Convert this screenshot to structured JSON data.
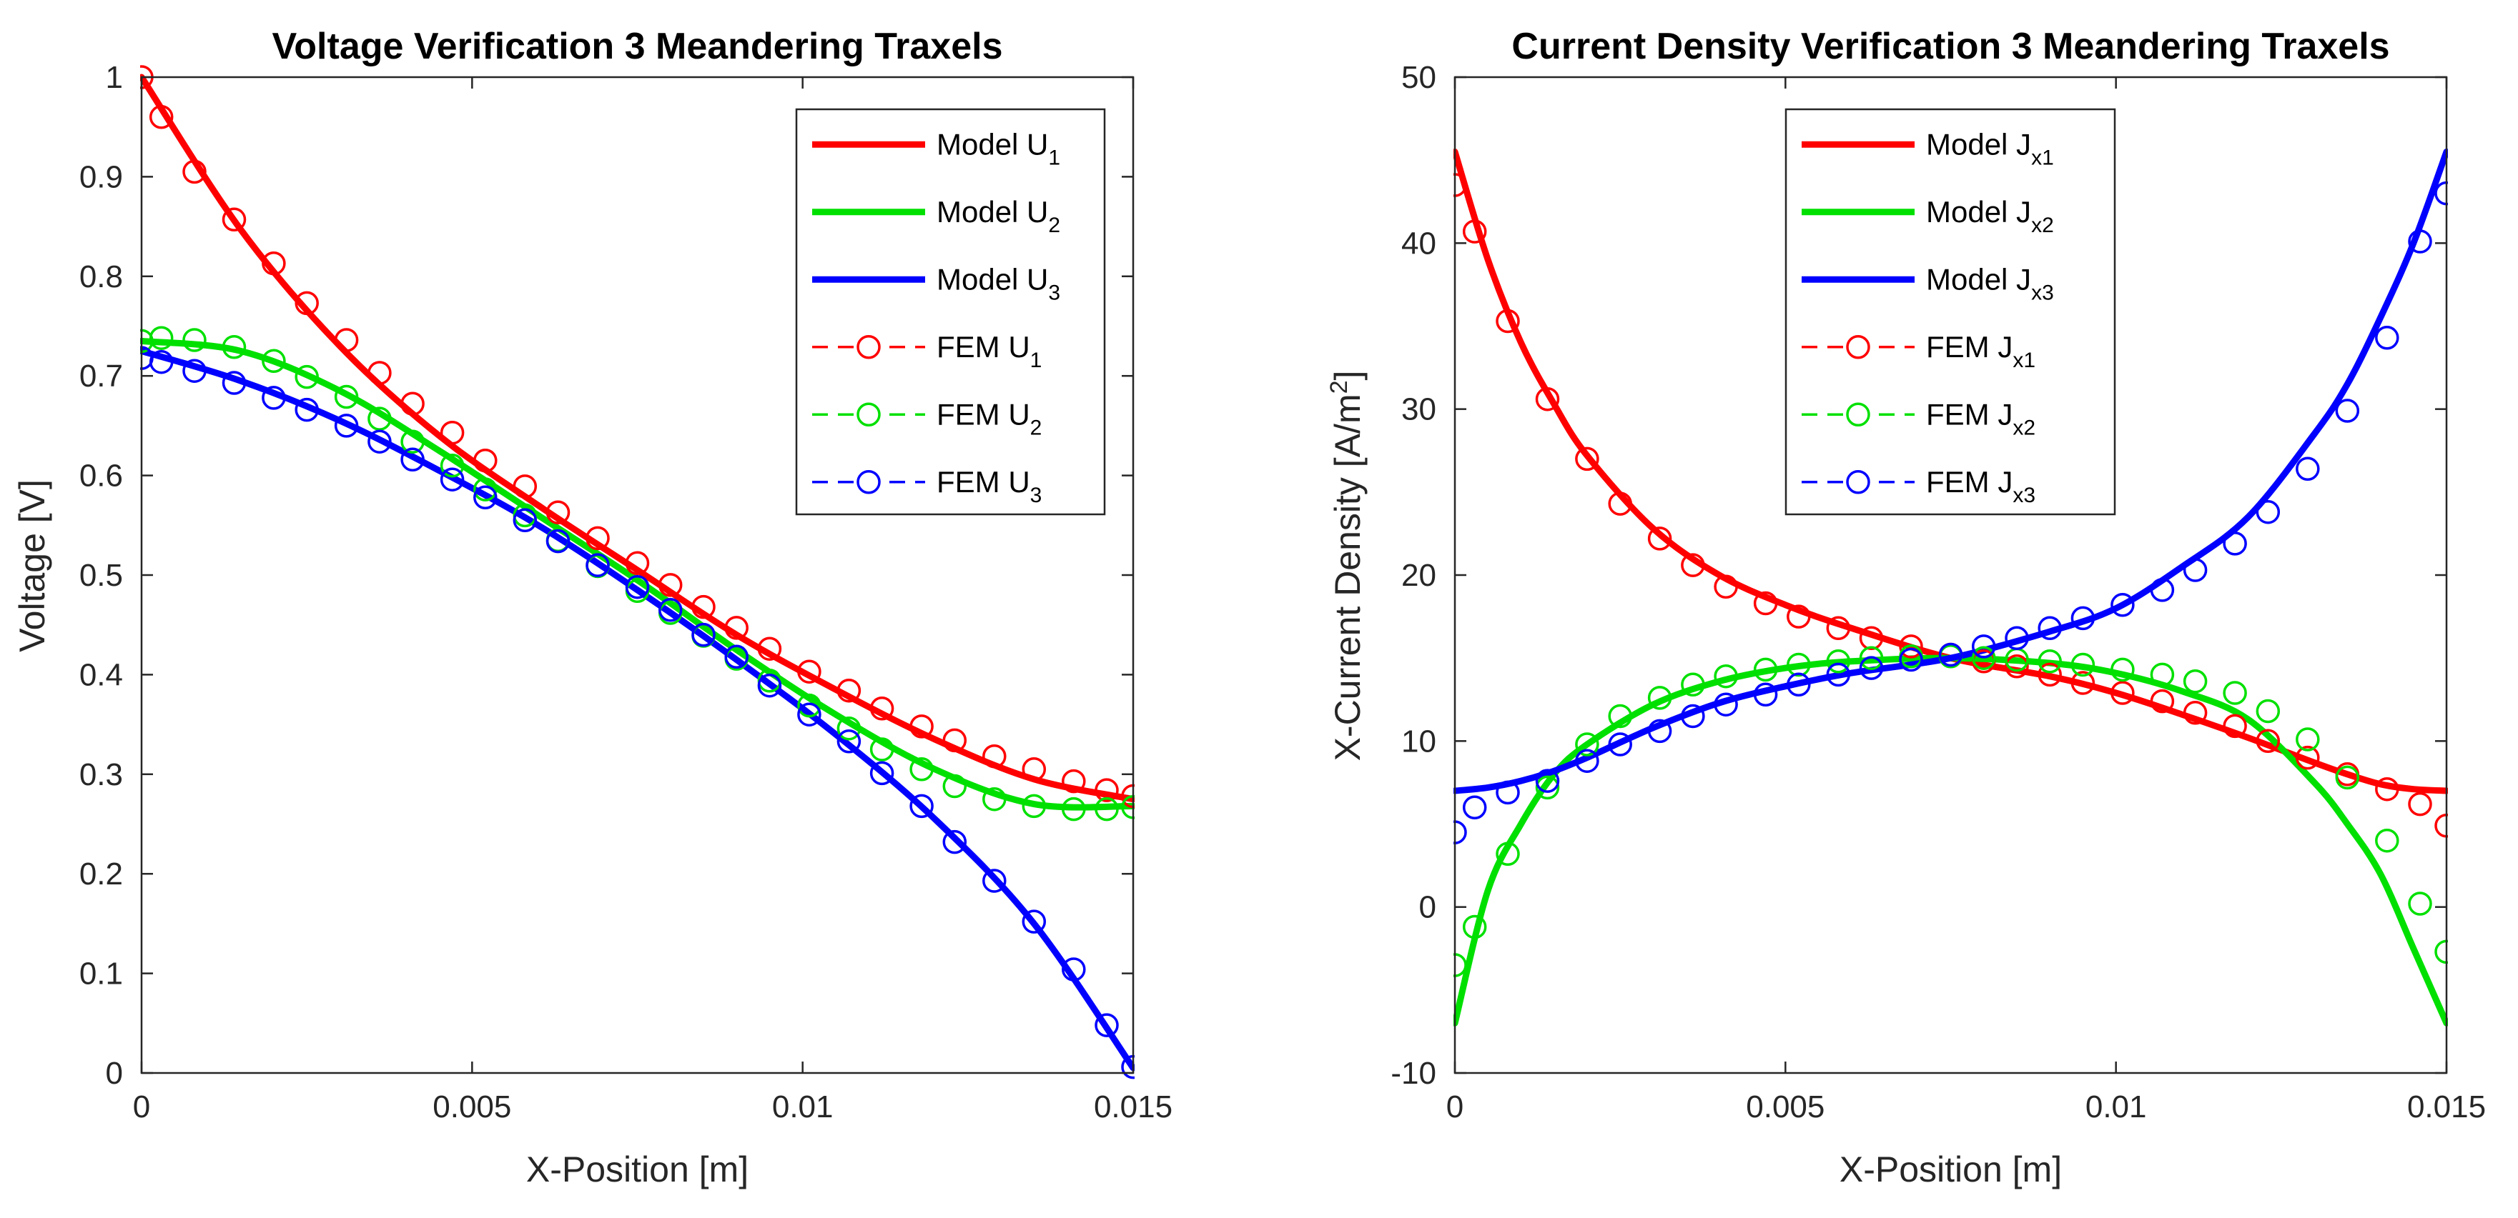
{
  "chart_data": [
    {
      "type": "line",
      "title": "Voltage Verification 3 Meandering Traxels",
      "xlabel": "X-Position [m]",
      "ylabel": "Voltage [V]",
      "xlim": [
        0,
        0.015
      ],
      "ylim": [
        0,
        1
      ],
      "xticks": [
        0,
        0.005,
        0.01,
        0.015
      ],
      "xtick_labels": [
        "0",
        "0.005",
        "0.01",
        "0.015"
      ],
      "yticks": [
        0,
        0.1,
        0.2,
        0.3,
        0.4,
        0.5,
        0.6,
        0.7,
        0.8,
        0.9,
        1
      ],
      "ytick_labels": [
        "0",
        "0.1",
        "0.2",
        "0.3",
        "0.4",
        "0.5",
        "0.6",
        "0.7",
        "0.8",
        "0.9",
        "1"
      ],
      "legend_position": "top-right",
      "model_x": [
        0,
        0.0015,
        0.003,
        0.0045,
        0.006,
        0.0075,
        0.009,
        0.0105,
        0.012,
        0.0135,
        0.015
      ],
      "fem_x": [
        0,
        0.0003,
        0.0008,
        0.0014,
        0.002,
        0.0025,
        0.0031,
        0.0036,
        0.0041,
        0.0047,
        0.0052,
        0.0058,
        0.0063,
        0.0069,
        0.0075,
        0.008,
        0.0085,
        0.009,
        0.0095,
        0.0101,
        0.0107,
        0.0112,
        0.0118,
        0.0123,
        0.0129,
        0.0135,
        0.0141,
        0.0146,
        0.015
      ],
      "series": [
        {
          "name": "Model U1",
          "legend_main": "Model U",
          "legend_sub": "1",
          "kind": "model",
          "color": "#ff0000",
          "values": [
            1.0,
            0.847,
            0.73,
            0.64,
            0.57,
            0.505,
            0.44,
            0.385,
            0.335,
            0.295,
            0.275
          ]
        },
        {
          "name": "Model U2",
          "legend_main": "Model U",
          "legend_sub": "2",
          "kind": "model",
          "color": "#00e000",
          "values": [
            0.735,
            0.725,
            0.685,
            0.625,
            0.56,
            0.495,
            0.425,
            0.36,
            0.305,
            0.27,
            0.268
          ]
        },
        {
          "name": "Model U3",
          "legend_main": "Model U",
          "legend_sub": "3",
          "kind": "model",
          "color": "#0000ff",
          "values": [
            0.725,
            0.695,
            0.655,
            0.605,
            0.55,
            0.485,
            0.415,
            0.34,
            0.255,
            0.15,
            0.005
          ]
        },
        {
          "name": "FEM U1",
          "legend_main": "FEM U",
          "legend_sub": "1",
          "kind": "fem",
          "color": "#ff0000",
          "values": [
            1.0,
            0.96,
            0.905,
            0.857,
            0.813,
            0.773,
            0.736,
            0.703,
            0.672,
            0.643,
            0.615,
            0.589,
            0.563,
            0.537,
            0.512,
            0.49,
            0.468,
            0.447,
            0.426,
            0.403,
            0.384,
            0.366,
            0.348,
            0.334,
            0.318,
            0.305,
            0.293,
            0.284,
            0.278
          ]
        },
        {
          "name": "FEM U2",
          "legend_main": "FEM U",
          "legend_sub": "2",
          "kind": "fem",
          "color": "#00e000",
          "values": [
            0.735,
            0.738,
            0.736,
            0.729,
            0.715,
            0.699,
            0.679,
            0.657,
            0.634,
            0.61,
            0.586,
            0.56,
            0.535,
            0.509,
            0.484,
            0.462,
            0.439,
            0.416,
            0.394,
            0.369,
            0.346,
            0.325,
            0.305,
            0.288,
            0.275,
            0.268,
            0.265,
            0.265,
            0.267
          ]
        },
        {
          "name": "FEM U3",
          "legend_main": "FEM U",
          "legend_sub": "3",
          "kind": "fem",
          "color": "#0000ff",
          "values": [
            0.718,
            0.714,
            0.705,
            0.693,
            0.678,
            0.666,
            0.65,
            0.634,
            0.616,
            0.596,
            0.578,
            0.555,
            0.534,
            0.51,
            0.488,
            0.465,
            0.44,
            0.418,
            0.389,
            0.36,
            0.333,
            0.301,
            0.268,
            0.232,
            0.193,
            0.152,
            0.104,
            0.048,
            0.006
          ]
        }
      ]
    },
    {
      "type": "line",
      "title": "Current Density Verification 3 Meandering Traxels",
      "xlabel": "X-Position [m]",
      "ylabel": "X-Current Density [A/m",
      "ylabel_sup": "2",
      "ylabel_end": "]",
      "xlim": [
        0,
        0.015
      ],
      "ylim": [
        -10,
        50
      ],
      "xticks": [
        0,
        0.005,
        0.01,
        0.015
      ],
      "xtick_labels": [
        "0",
        "0.005",
        "0.01",
        "0.015"
      ],
      "yticks": [
        -10,
        0,
        10,
        20,
        30,
        40,
        50
      ],
      "ytick_labels": [
        "-10",
        "0",
        "10",
        "20",
        "30",
        "40",
        "50"
      ],
      "legend_position": "top-center",
      "model_x": [
        0,
        0.0005,
        0.001,
        0.0015,
        0.002,
        0.003,
        0.004,
        0.005,
        0.006,
        0.0075,
        0.009,
        0.01,
        0.011,
        0.012,
        0.013,
        0.0135,
        0.014,
        0.0145,
        0.015
      ],
      "fem_x": [
        0,
        0.0003,
        0.0008,
        0.0014,
        0.002,
        0.0025,
        0.0031,
        0.0036,
        0.0041,
        0.0047,
        0.0052,
        0.0058,
        0.0063,
        0.0069,
        0.0075,
        0.008,
        0.0085,
        0.009,
        0.0095,
        0.0101,
        0.0107,
        0.0112,
        0.0118,
        0.0123,
        0.0129,
        0.0135,
        0.0141,
        0.0146,
        0.015
      ],
      "series": [
        {
          "name": "Model Jx1",
          "legend_main": "Model J",
          "legend_sub": "x1",
          "kind": "model",
          "color": "#ff0000",
          "values": [
            45.5,
            39.0,
            34.0,
            30.3,
            27.2,
            22.8,
            20.0,
            18.2,
            16.8,
            15.0,
            13.9,
            12.9,
            11.6,
            10.2,
            8.7,
            8.0,
            7.4,
            7.1,
            7.0
          ]
        },
        {
          "name": "Model Jx2",
          "legend_main": "Model J",
          "legend_sub": "x2",
          "kind": "model",
          "color": "#00e000",
          "values": [
            -7.0,
            1.0,
            5.0,
            8.0,
            9.8,
            12.2,
            13.6,
            14.4,
            14.8,
            15.0,
            14.7,
            14.1,
            13.0,
            11.3,
            7.5,
            5.0,
            2.0,
            -2.5,
            -7.0
          ]
        },
        {
          "name": "Model Jx3",
          "legend_main": "Model J",
          "legend_sub": "x3",
          "kind": "model",
          "color": "#0000ff",
          "values": [
            7.0,
            7.2,
            7.6,
            8.2,
            9.0,
            10.8,
            12.3,
            13.3,
            14.1,
            15.0,
            16.6,
            18.0,
            20.5,
            23.5,
            28.5,
            31.5,
            35.5,
            40.0,
            45.5
          ]
        },
        {
          "name": "FEM Jx1",
          "legend_main": "FEM J",
          "legend_sub": "x1",
          "kind": "fem",
          "color": "#ff0000",
          "values": [
            43.5,
            40.7,
            35.3,
            30.6,
            27.0,
            24.3,
            22.2,
            20.6,
            19.3,
            18.3,
            17.5,
            16.8,
            16.2,
            15.7,
            15.2,
            14.8,
            14.5,
            14.0,
            13.5,
            12.9,
            12.4,
            11.7,
            10.9,
            10.0,
            9.0,
            8.0,
            7.1,
            6.2,
            4.9
          ]
        },
        {
          "name": "FEM Jx2",
          "legend_main": "FEM J",
          "legend_sub": "x2",
          "kind": "fem",
          "color": "#00e000",
          "values": [
            -3.5,
            -1.2,
            3.2,
            7.2,
            9.8,
            11.5,
            12.6,
            13.4,
            13.9,
            14.3,
            14.6,
            14.8,
            15.0,
            15.1,
            15.1,
            15.0,
            14.9,
            14.8,
            14.6,
            14.3,
            14.0,
            13.6,
            12.9,
            11.8,
            10.1,
            7.8,
            4.0,
            0.2,
            -2.7
          ]
        },
        {
          "name": "FEM Jx3",
          "legend_main": "FEM J",
          "legend_sub": "x3",
          "kind": "fem",
          "color": "#0000ff",
          "values": [
            4.5,
            6.0,
            6.9,
            7.6,
            8.8,
            9.8,
            10.6,
            11.5,
            12.2,
            12.8,
            13.4,
            14.0,
            14.4,
            14.9,
            15.2,
            15.7,
            16.2,
            16.8,
            17.4,
            18.2,
            19.1,
            20.3,
            21.9,
            23.8,
            26.4,
            29.9,
            34.3,
            40.1,
            43.0
          ]
        }
      ]
    }
  ]
}
